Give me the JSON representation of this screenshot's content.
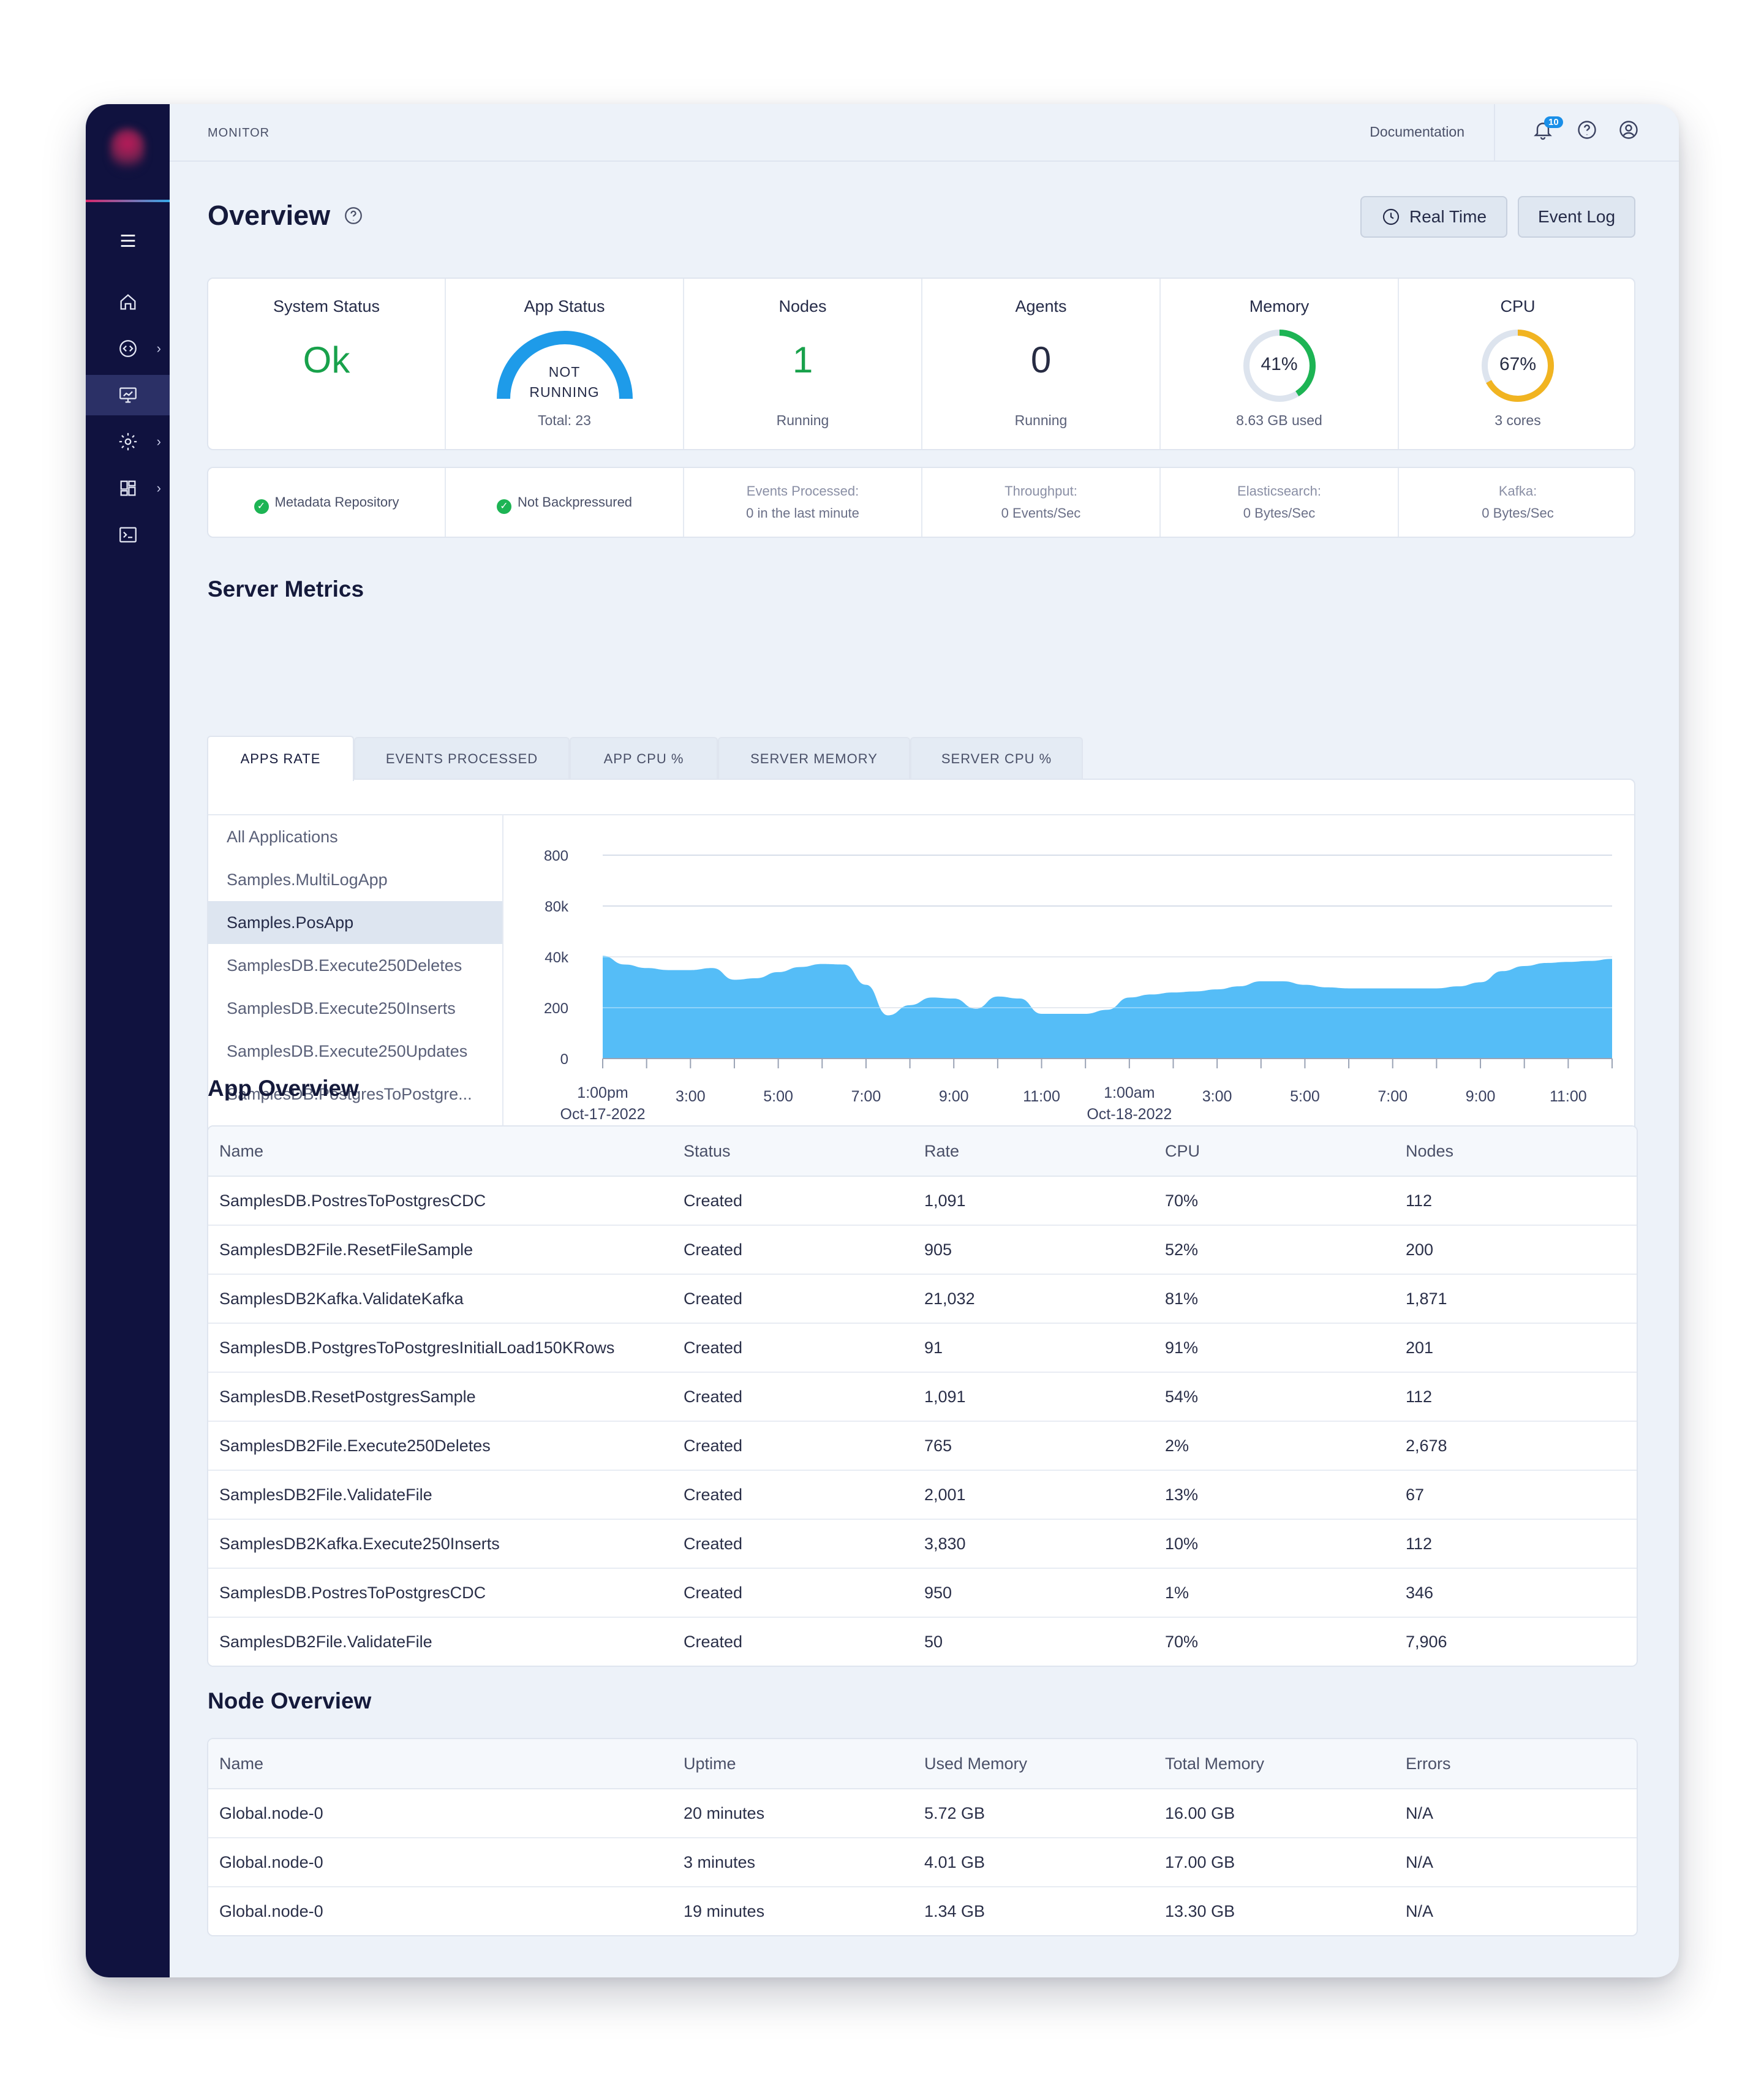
{
  "header": {
    "breadcrumb": "MONITOR",
    "documentation": "Documentation",
    "notification_count": "10"
  },
  "page": {
    "title": "Overview",
    "real_time_label": "Real Time",
    "event_log_label": "Event Log"
  },
  "stats": {
    "system_status": {
      "label": "System Status",
      "value": "Ok"
    },
    "app_status": {
      "label": "App Status",
      "value_line1": "NOT",
      "value_line2": "RUNNING",
      "sub": "Total: 23"
    },
    "nodes": {
      "label": "Nodes",
      "value": "1",
      "sub": "Running"
    },
    "agents": {
      "label": "Agents",
      "value": "0",
      "sub": "Running"
    },
    "memory": {
      "label": "Memory",
      "percent_text": "41%",
      "percent": 41,
      "sub": "8.63 GB used",
      "color": "#1db454"
    },
    "cpu": {
      "label": "CPU",
      "percent_text": "67%",
      "percent": 67,
      "sub": "3 cores",
      "color": "#f1b421"
    }
  },
  "health": {
    "metadata": "Metadata Repository",
    "backpressure": "Not Backpressured",
    "events_label": "Events Processed:",
    "events_value": "0 in the last minute",
    "throughput_label": "Throughput:",
    "throughput_value": "0 Events/Sec",
    "elastic_label": "Elasticsearch:",
    "elastic_value": "0 Bytes/Sec",
    "kafka_label": "Kafka:",
    "kafka_value": "0 Bytes/Sec"
  },
  "server_metrics": {
    "title": "Server Metrics",
    "tabs": [
      "APPS RATE",
      "EVENTS PROCESSED",
      "APP CPU %",
      "SERVER MEMORY",
      "SERVER CPU %"
    ],
    "apps": [
      "All Applications",
      "Samples.MultiLogApp",
      "Samples.PosApp",
      "SamplesDB.Execute250Deletes",
      "SamplesDB.Execute250Inserts",
      "SamplesDB.Execute250Updates",
      "SamplesDB.PostgresToPostgre..."
    ],
    "selected_app": "Samples.PosApp"
  },
  "chart_data": {
    "type": "area",
    "y_tick_labels": [
      "0",
      "200",
      "40k",
      "80k",
      "800"
    ],
    "x_tick_labels": [
      {
        "label": "1:00pm",
        "sub": "Oct-17-2022"
      },
      {
        "label": "3:00",
        "sub": ""
      },
      {
        "label": "5:00",
        "sub": ""
      },
      {
        "label": "7:00",
        "sub": ""
      },
      {
        "label": "9:00",
        "sub": ""
      },
      {
        "label": "11:00",
        "sub": ""
      },
      {
        "label": "1:00am",
        "sub": "Oct-18-2022"
      },
      {
        "label": "3:00",
        "sub": ""
      },
      {
        "label": "5:00",
        "sub": ""
      },
      {
        "label": "7:00",
        "sub": ""
      },
      {
        "label": "9:00",
        "sub": ""
      },
      {
        "label": "11:00",
        "sub": ""
      }
    ],
    "hours": [
      0,
      0.5,
      1,
      1.5,
      2,
      2.5,
      3,
      3.5,
      4,
      4.5,
      5,
      5.5,
      6,
      6.5,
      7,
      7.5,
      8,
      8.5,
      9,
      9.5,
      10,
      10.5,
      11,
      11.5,
      12,
      12.5,
      13,
      13.5,
      14,
      14.5,
      15,
      15.5,
      16,
      16.5,
      17,
      17.5,
      18,
      18.5,
      19,
      19.5,
      20,
      20.5,
      21,
      21.5,
      22,
      22.5,
      23
    ],
    "values_tick_scale": [
      2.02,
      1.85,
      1.78,
      1.74,
      1.74,
      1.78,
      1.55,
      1.58,
      1.7,
      1.8,
      1.86,
      1.85,
      1.45,
      0.85,
      1.05,
      1.2,
      1.18,
      0.98,
      1.22,
      1.18,
      0.88,
      0.88,
      0.88,
      0.96,
      1.2,
      1.26,
      1.3,
      1.32,
      1.36,
      1.42,
      1.52,
      1.52,
      1.45,
      1.4,
      1.38,
      1.38,
      1.38,
      1.38,
      1.38,
      1.42,
      1.5,
      1.72,
      1.82,
      1.88,
      1.9,
      1.92,
      1.96
    ],
    "color": "#55bdf7"
  },
  "app_overview": {
    "title": "App Overview",
    "columns": [
      "Name",
      "Status",
      "Rate",
      "CPU",
      "Nodes"
    ],
    "rows": [
      [
        "SamplesDB.PostresToPostgresCDC",
        "Created",
        "1,091",
        "70%",
        "112"
      ],
      [
        "SamplesDB2File.ResetFileSample",
        "Created",
        "905",
        "52%",
        "200"
      ],
      [
        "SamplesDB2Kafka.ValidateKafka",
        "Created",
        "21,032",
        "81%",
        "1,871"
      ],
      [
        "SamplesDB.PostgresToPostgresInitialLoad150KRows",
        "Created",
        "91",
        "91%",
        "201"
      ],
      [
        "SamplesDB.ResetPostgresSample",
        "Created",
        "1,091",
        "54%",
        "112"
      ],
      [
        "SamplesDB2File.Execute250Deletes",
        "Created",
        "765",
        "2%",
        "2,678"
      ],
      [
        "SamplesDB2File.ValidateFile",
        "Created",
        "2,001",
        "13%",
        "67"
      ],
      [
        "SamplesDB2Kafka.Execute250Inserts",
        "Created",
        "3,830",
        "10%",
        "112"
      ],
      [
        "SamplesDB.PostresToPostgresCDC",
        "Created",
        "950",
        "1%",
        "346"
      ],
      [
        "SamplesDB2File.ValidateFile",
        "Created",
        "50",
        "70%",
        "7,906"
      ]
    ]
  },
  "node_overview": {
    "title": "Node Overview",
    "columns": [
      "Name",
      "Uptime",
      "Used Memory",
      "Total Memory",
      "Errors"
    ],
    "rows": [
      [
        "Global.node-0",
        "20 minutes",
        "5.72 GB",
        "16.00 GB",
        "N/A"
      ],
      [
        "Global.node-0",
        "3 minutes",
        "4.01 GB",
        "17.00 GB",
        "N/A"
      ],
      [
        "Global.node-0",
        "19 minutes",
        "1.34 GB",
        "13.30 GB",
        "N/A"
      ]
    ]
  },
  "colors": {
    "sidebar": "#10123f",
    "accent": "#1a8fe8",
    "ok": "#18a14b"
  }
}
